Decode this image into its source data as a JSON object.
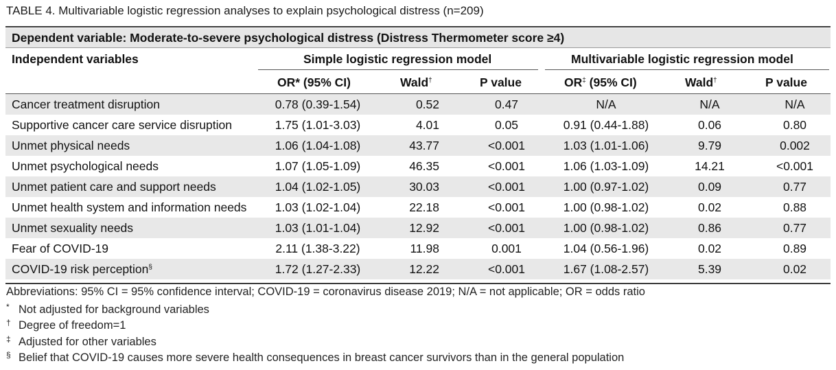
{
  "caption": {
    "label": "TABLE 4.",
    "text": "Multivariable logistic regression analyses to explain psychological distress (n=209)"
  },
  "dependent_variable": "Dependent variable: Moderate-to-severe psychological distress (Distress Thermometer score ≥4)",
  "headers": {
    "independent": "Independent variables",
    "simple_model": "Simple logistic regression model",
    "multi_model": "Multivariable logistic regression model",
    "simple_or": "OR* (95% CI)",
    "wald": "Wald",
    "wald_mark": "†",
    "p_value": "P value",
    "multi_or": "OR",
    "multi_or_mark": "‡",
    "multi_or_rest": " (95% CI)"
  },
  "rows": [
    {
      "label": "Cancer treatment disruption",
      "mark": "",
      "or1": "0.78 (0.39-1.54)",
      "wald1": "0.52",
      "p1": "0.47",
      "or2": "N/A",
      "wald2": "N/A",
      "p2": "N/A"
    },
    {
      "label": "Supportive cancer care service disruption",
      "mark": "",
      "or1": "1.75 (1.01-3.03)",
      "wald1": "4.01",
      "p1": "0.05",
      "or2": "0.91 (0.44-1.88)",
      "wald2": "0.06",
      "p2": "0.80"
    },
    {
      "label": "Unmet physical needs",
      "mark": "",
      "or1": "1.06 (1.04-1.08)",
      "wald1": "43.77",
      "p1": "<0.001",
      "or2": "1.03 (1.01-1.06)",
      "wald2": "9.79",
      "p2": "0.002"
    },
    {
      "label": "Unmet psychological needs",
      "mark": "",
      "or1": "1.07 (1.05-1.09)",
      "wald1": "46.35",
      "p1": "<0.001",
      "or2": "1.06 (1.03-1.09)",
      "wald2": "14.21",
      "p2": "<0.001"
    },
    {
      "label": "Unmet patient care and support needs",
      "mark": "",
      "or1": "1.04 (1.02-1.05)",
      "wald1": "30.03",
      "p1": "<0.001",
      "or2": "1.00 (0.97-1.02)",
      "wald2": "0.09",
      "p2": "0.77"
    },
    {
      "label": "Unmet health system and information needs",
      "mark": "",
      "or1": "1.03 (1.02-1.04)",
      "wald1": "22.18",
      "p1": "<0.001",
      "or2": "1.00 (0.98-1.02)",
      "wald2": "0.02",
      "p2": "0.88"
    },
    {
      "label": "Unmet sexuality needs",
      "mark": "",
      "or1": "1.03 (1.01-1.04)",
      "wald1": "12.92",
      "p1": "<0.001",
      "or2": "1.00 (0.98-1.02)",
      "wald2": "0.86",
      "p2": "0.77"
    },
    {
      "label": "Fear of COVID-19",
      "mark": "",
      "or1": "2.11 (1.38-3.22)",
      "wald1": "11.98",
      "p1": "0.001",
      "or2": "1.04 (0.56-1.96)",
      "wald2": "0.02",
      "p2": "0.89"
    },
    {
      "label": "COVID-19 risk perception",
      "mark": "§",
      "or1": "1.72 (1.27-2.33)",
      "wald1": "12.22",
      "p1": "<0.001",
      "or2": "1.67 (1.08-2.57)",
      "wald2": "5.39",
      "p2": "0.02"
    }
  ],
  "footnotes": {
    "abbreviations": "Abbreviations: 95% CI = 95% confidence interval; COVID-19 = coronavirus disease 2019; N/A = not applicable; OR = odds ratio",
    "items": [
      {
        "symbol": "*",
        "text": "Not adjusted for background variables"
      },
      {
        "symbol": "†",
        "text": "Degree of freedom=1"
      },
      {
        "symbol": "‡",
        "text": "Adjusted for other variables"
      },
      {
        "symbol": "§",
        "text": "Belief that COVID-19 causes more severe health consequences in breast cancer survivors than in the general population"
      }
    ]
  }
}
